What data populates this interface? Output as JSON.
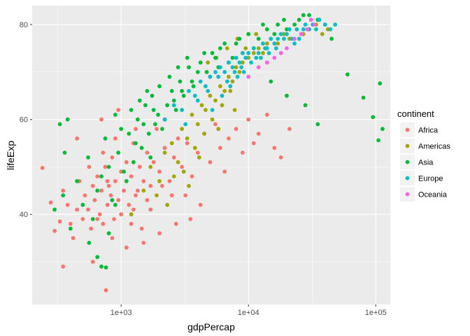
{
  "chart_data": {
    "type": "scatter",
    "x_scale": "log10",
    "xlabel": "gdpPercap",
    "ylabel": "lifeExp",
    "xlim": [
      200,
      130000
    ],
    "ylim": [
      21,
      84
    ],
    "x_ticks": [
      1000,
      10000,
      100000
    ],
    "x_tick_labels": [
      "1e+03",
      "1e+04",
      "1e+05"
    ],
    "y_ticks": [
      40,
      60,
      80
    ],
    "y_tick_labels": [
      "40",
      "60",
      "80"
    ],
    "grid": true,
    "legend_title": "continent",
    "legend_position": "right",
    "series": [
      {
        "name": "Africa",
        "color": "#F8766D",
        "points": [
          [
            241,
            49.8
          ],
          [
            280,
            42.5
          ],
          [
            300,
            36.5
          ],
          [
            330,
            38.5
          ],
          [
            350,
            45
          ],
          [
            380,
            42
          ],
          [
            400,
            38
          ],
          [
            420,
            35
          ],
          [
            450,
            41
          ],
          [
            470,
            47
          ],
          [
            500,
            39
          ],
          [
            520,
            44
          ],
          [
            550,
            41
          ],
          [
            580,
            37
          ],
          [
            600,
            46
          ],
          [
            620,
            43
          ],
          [
            650,
            48
          ],
          [
            680,
            40
          ],
          [
            700,
            45
          ],
          [
            720,
            38
          ],
          [
            750,
            50
          ],
          [
            780,
            42
          ],
          [
            800,
            46
          ],
          [
            830,
            44
          ],
          [
            850,
            52
          ],
          [
            880,
            39
          ],
          [
            900,
            47
          ],
          [
            950,
            43
          ],
          [
            1000,
            49
          ],
          [
            1050,
            45
          ],
          [
            1100,
            51
          ],
          [
            1150,
            42
          ],
          [
            1200,
            48
          ],
          [
            1250,
            55
          ],
          [
            1300,
            44
          ],
          [
            1400,
            50
          ],
          [
            1500,
            47
          ],
          [
            1600,
            53
          ],
          [
            1700,
            46
          ],
          [
            1800,
            51
          ],
          [
            1900,
            58
          ],
          [
            2000,
            49
          ],
          [
            2200,
            54
          ],
          [
            2400,
            47
          ],
          [
            2600,
            52
          ],
          [
            2800,
            56
          ],
          [
            3000,
            50
          ],
          [
            3300,
            55
          ],
          [
            3600,
            48
          ],
          [
            4000,
            53
          ],
          [
            4500,
            57
          ],
          [
            5000,
            51
          ],
          [
            5500,
            59
          ],
          [
            6000,
            54
          ],
          [
            6500,
            49
          ],
          [
            7000,
            56
          ],
          [
            8000,
            58
          ],
          [
            9000,
            53
          ],
          [
            10000,
            60
          ],
          [
            11000,
            55
          ],
          [
            12000,
            57
          ],
          [
            14000,
            61
          ],
          [
            16000,
            54
          ],
          [
            18000,
            52
          ],
          [
            21000,
            58
          ],
          [
            600,
            30
          ],
          [
            850,
            35
          ],
          [
            1200,
            38
          ],
          [
            760,
            24
          ],
          [
            1500,
            34
          ],
          [
            2000,
            36
          ],
          [
            350,
            29
          ],
          [
            1100,
            33
          ],
          [
            700,
            60
          ],
          [
            950,
            62
          ],
          [
            1300,
            58
          ],
          [
            450,
            56
          ],
          [
            1700,
            41
          ],
          [
            2500,
            44
          ],
          [
            3500,
            39
          ],
          [
            560,
            50
          ],
          [
            720,
            53
          ],
          [
            900,
            56
          ],
          [
            1250,
            41
          ],
          [
            1450,
            37
          ],
          [
            650,
            39
          ],
          [
            780,
            47
          ],
          [
            1000,
            40
          ],
          [
            1350,
            45
          ],
          [
            850,
            43
          ],
          [
            1600,
            43
          ],
          [
            2100,
            46
          ],
          [
            2700,
            38
          ],
          [
            3200,
            44
          ],
          [
            4200,
            42
          ]
        ]
      },
      {
        "name": "Americas",
        "color": "#A3A500",
        "points": [
          [
            1200,
            40
          ],
          [
            1500,
            45
          ],
          [
            1700,
            50
          ],
          [
            2000,
            47
          ],
          [
            2200,
            53
          ],
          [
            2500,
            55
          ],
          [
            2800,
            51
          ],
          [
            3000,
            58
          ],
          [
            3300,
            56
          ],
          [
            3600,
            61
          ],
          [
            4000,
            59
          ],
          [
            4300,
            63
          ],
          [
            4600,
            62
          ],
          [
            5000,
            65
          ],
          [
            5500,
            64
          ],
          [
            6000,
            67
          ],
          [
            6500,
            66
          ],
          [
            7000,
            69
          ],
          [
            7500,
            68
          ],
          [
            8000,
            71
          ],
          [
            8500,
            70
          ],
          [
            9000,
            72
          ],
          [
            10000,
            73
          ],
          [
            11000,
            74
          ],
          [
            12000,
            75
          ],
          [
            13000,
            74
          ],
          [
            14000,
            76
          ],
          [
            15000,
            77
          ],
          [
            17000,
            76
          ],
          [
            19000,
            78
          ],
          [
            21000,
            77
          ],
          [
            24000,
            79
          ],
          [
            27000,
            78
          ],
          [
            30000,
            79
          ],
          [
            34000,
            80
          ],
          [
            38000,
            78
          ],
          [
            42000,
            79
          ],
          [
            3800,
            54
          ],
          [
            4500,
            57
          ],
          [
            5200,
            60
          ],
          [
            6200,
            63
          ],
          [
            7200,
            66
          ],
          [
            2600,
            48
          ],
          [
            3100,
            49
          ],
          [
            9500,
            75
          ],
          [
            11500,
            78
          ],
          [
            4800,
            72
          ],
          [
            5600,
            73
          ],
          [
            6800,
            75
          ],
          [
            8200,
            77
          ],
          [
            1900,
            44
          ],
          [
            2300,
            42
          ],
          [
            3400,
            46
          ],
          [
            4100,
            52
          ],
          [
            5800,
            58
          ],
          [
            7800,
            62
          ]
        ]
      },
      {
        "name": "Asia",
        "color": "#00BA38",
        "points": [
          [
            300,
            41
          ],
          [
            350,
            44
          ],
          [
            400,
            37
          ],
          [
            450,
            47
          ],
          [
            500,
            42
          ],
          [
            550,
            52
          ],
          [
            600,
            39
          ],
          [
            650,
            45
          ],
          [
            700,
            48
          ],
          [
            750,
            56
          ],
          [
            800,
            50
          ],
          [
            850,
            43
          ],
          [
            900,
            61
          ],
          [
            950,
            53
          ],
          [
            1000,
            58
          ],
          [
            1100,
            47
          ],
          [
            1200,
            62
          ],
          [
            1300,
            55
          ],
          [
            1400,
            64
          ],
          [
            1500,
            59
          ],
          [
            1600,
            66
          ],
          [
            1700,
            52
          ],
          [
            1800,
            62
          ],
          [
            2000,
            67
          ],
          [
            2200,
            60
          ],
          [
            2400,
            69
          ],
          [
            2600,
            64
          ],
          [
            2800,
            71
          ],
          [
            3000,
            66
          ],
          [
            3300,
            73
          ],
          [
            3600,
            68
          ],
          [
            4000,
            70
          ],
          [
            4500,
            74
          ],
          [
            5000,
            69
          ],
          [
            5500,
            73
          ],
          [
            6000,
            75
          ],
          [
            7000,
            72
          ],
          [
            8000,
            76
          ],
          [
            9000,
            74
          ],
          [
            10000,
            78
          ],
          [
            12000,
            77
          ],
          [
            14000,
            79
          ],
          [
            17000,
            80
          ],
          [
            20000,
            79
          ],
          [
            25000,
            81
          ],
          [
            30000,
            82
          ],
          [
            35000,
            81
          ],
          [
            40000,
            80
          ],
          [
            45000,
            77
          ],
          [
            60000,
            69.5
          ],
          [
            80000,
            64.6
          ],
          [
            95000,
            60.5
          ],
          [
            105000,
            55.6
          ],
          [
            108000,
            67.6
          ],
          [
            113000,
            58
          ],
          [
            35000,
            59
          ],
          [
            20000,
            65
          ],
          [
            28000,
            63
          ],
          [
            15000,
            68
          ],
          [
            330,
            59
          ],
          [
            360,
            53
          ],
          [
            380,
            60
          ],
          [
            560,
            34
          ],
          [
            650,
            31
          ],
          [
            700,
            29
          ],
          [
            760,
            28.8
          ],
          [
            800,
            36
          ],
          [
            900,
            42
          ],
          [
            1050,
            49
          ],
          [
            1150,
            57
          ],
          [
            1250,
            51
          ],
          [
            1350,
            60
          ],
          [
            1450,
            54
          ],
          [
            1550,
            63
          ],
          [
            1650,
            57
          ],
          [
            1750,
            65
          ],
          [
            1850,
            59
          ],
          [
            1950,
            61
          ],
          [
            2100,
            58
          ],
          [
            2300,
            63
          ],
          [
            2500,
            66
          ],
          [
            2700,
            62
          ],
          [
            2900,
            68
          ],
          [
            3100,
            65
          ],
          [
            3400,
            71
          ],
          [
            3700,
            67
          ],
          [
            4200,
            72
          ],
          [
            4700,
            70
          ],
          [
            5200,
            74
          ],
          [
            5800,
            71
          ],
          [
            6500,
            76
          ],
          [
            7500,
            73
          ],
          [
            8500,
            77
          ],
          [
            11000,
            75
          ],
          [
            13000,
            80
          ],
          [
            16000,
            78
          ],
          [
            19000,
            81
          ],
          [
            23000,
            80
          ],
          [
            27000,
            82
          ]
        ]
      },
      {
        "name": "Europe",
        "color": "#00BFC4",
        "points": [
          [
            2200,
            60
          ],
          [
            2600,
            63
          ],
          [
            3000,
            62
          ],
          [
            3400,
            66
          ],
          [
            3800,
            65
          ],
          [
            4200,
            68
          ],
          [
            4600,
            67
          ],
          [
            5000,
            69
          ],
          [
            5500,
            70
          ],
          [
            6000,
            71
          ],
          [
            6500,
            70
          ],
          [
            7000,
            72
          ],
          [
            7500,
            71
          ],
          [
            8000,
            73
          ],
          [
            8500,
            72
          ],
          [
            9000,
            74
          ],
          [
            9500,
            73
          ],
          [
            10000,
            74
          ],
          [
            11000,
            75
          ],
          [
            12000,
            74
          ],
          [
            13000,
            76
          ],
          [
            14000,
            75
          ],
          [
            15000,
            77
          ],
          [
            16000,
            76
          ],
          [
            17000,
            77
          ],
          [
            18000,
            78
          ],
          [
            19000,
            77
          ],
          [
            20000,
            78
          ],
          [
            21000,
            79
          ],
          [
            22000,
            77
          ],
          [
            24000,
            79
          ],
          [
            26000,
            78
          ],
          [
            28000,
            80
          ],
          [
            30000,
            79
          ],
          [
            32000,
            80
          ],
          [
            34000,
            79
          ],
          [
            36000,
            81
          ],
          [
            40000,
            80
          ],
          [
            44000,
            79
          ],
          [
            48000,
            80
          ],
          [
            3200,
            59
          ],
          [
            4000,
            64
          ],
          [
            4800,
            66
          ],
          [
            5800,
            69
          ],
          [
            6800,
            68
          ],
          [
            7800,
            70
          ],
          [
            8800,
            71
          ],
          [
            10500,
            72
          ],
          [
            12500,
            73
          ],
          [
            14500,
            74
          ],
          [
            16500,
            75
          ],
          [
            5200,
            62
          ],
          [
            6200,
            65
          ],
          [
            7200,
            67
          ],
          [
            8200,
            69
          ],
          [
            9200,
            70
          ],
          [
            11500,
            73
          ],
          [
            13500,
            75
          ],
          [
            23000,
            76
          ],
          [
            25000,
            77
          ],
          [
            27000,
            79
          ]
        ]
      },
      {
        "name": "Oceania",
        "color": "#F564E3",
        "points": [
          [
            10000,
            69
          ],
          [
            12000,
            71
          ],
          [
            14000,
            72
          ],
          [
            16000,
            73
          ],
          [
            18000,
            74
          ],
          [
            20000,
            75
          ],
          [
            23000,
            77
          ],
          [
            26000,
            78
          ],
          [
            29000,
            79
          ],
          [
            33000,
            80
          ],
          [
            31000,
            81
          ]
        ]
      }
    ]
  }
}
